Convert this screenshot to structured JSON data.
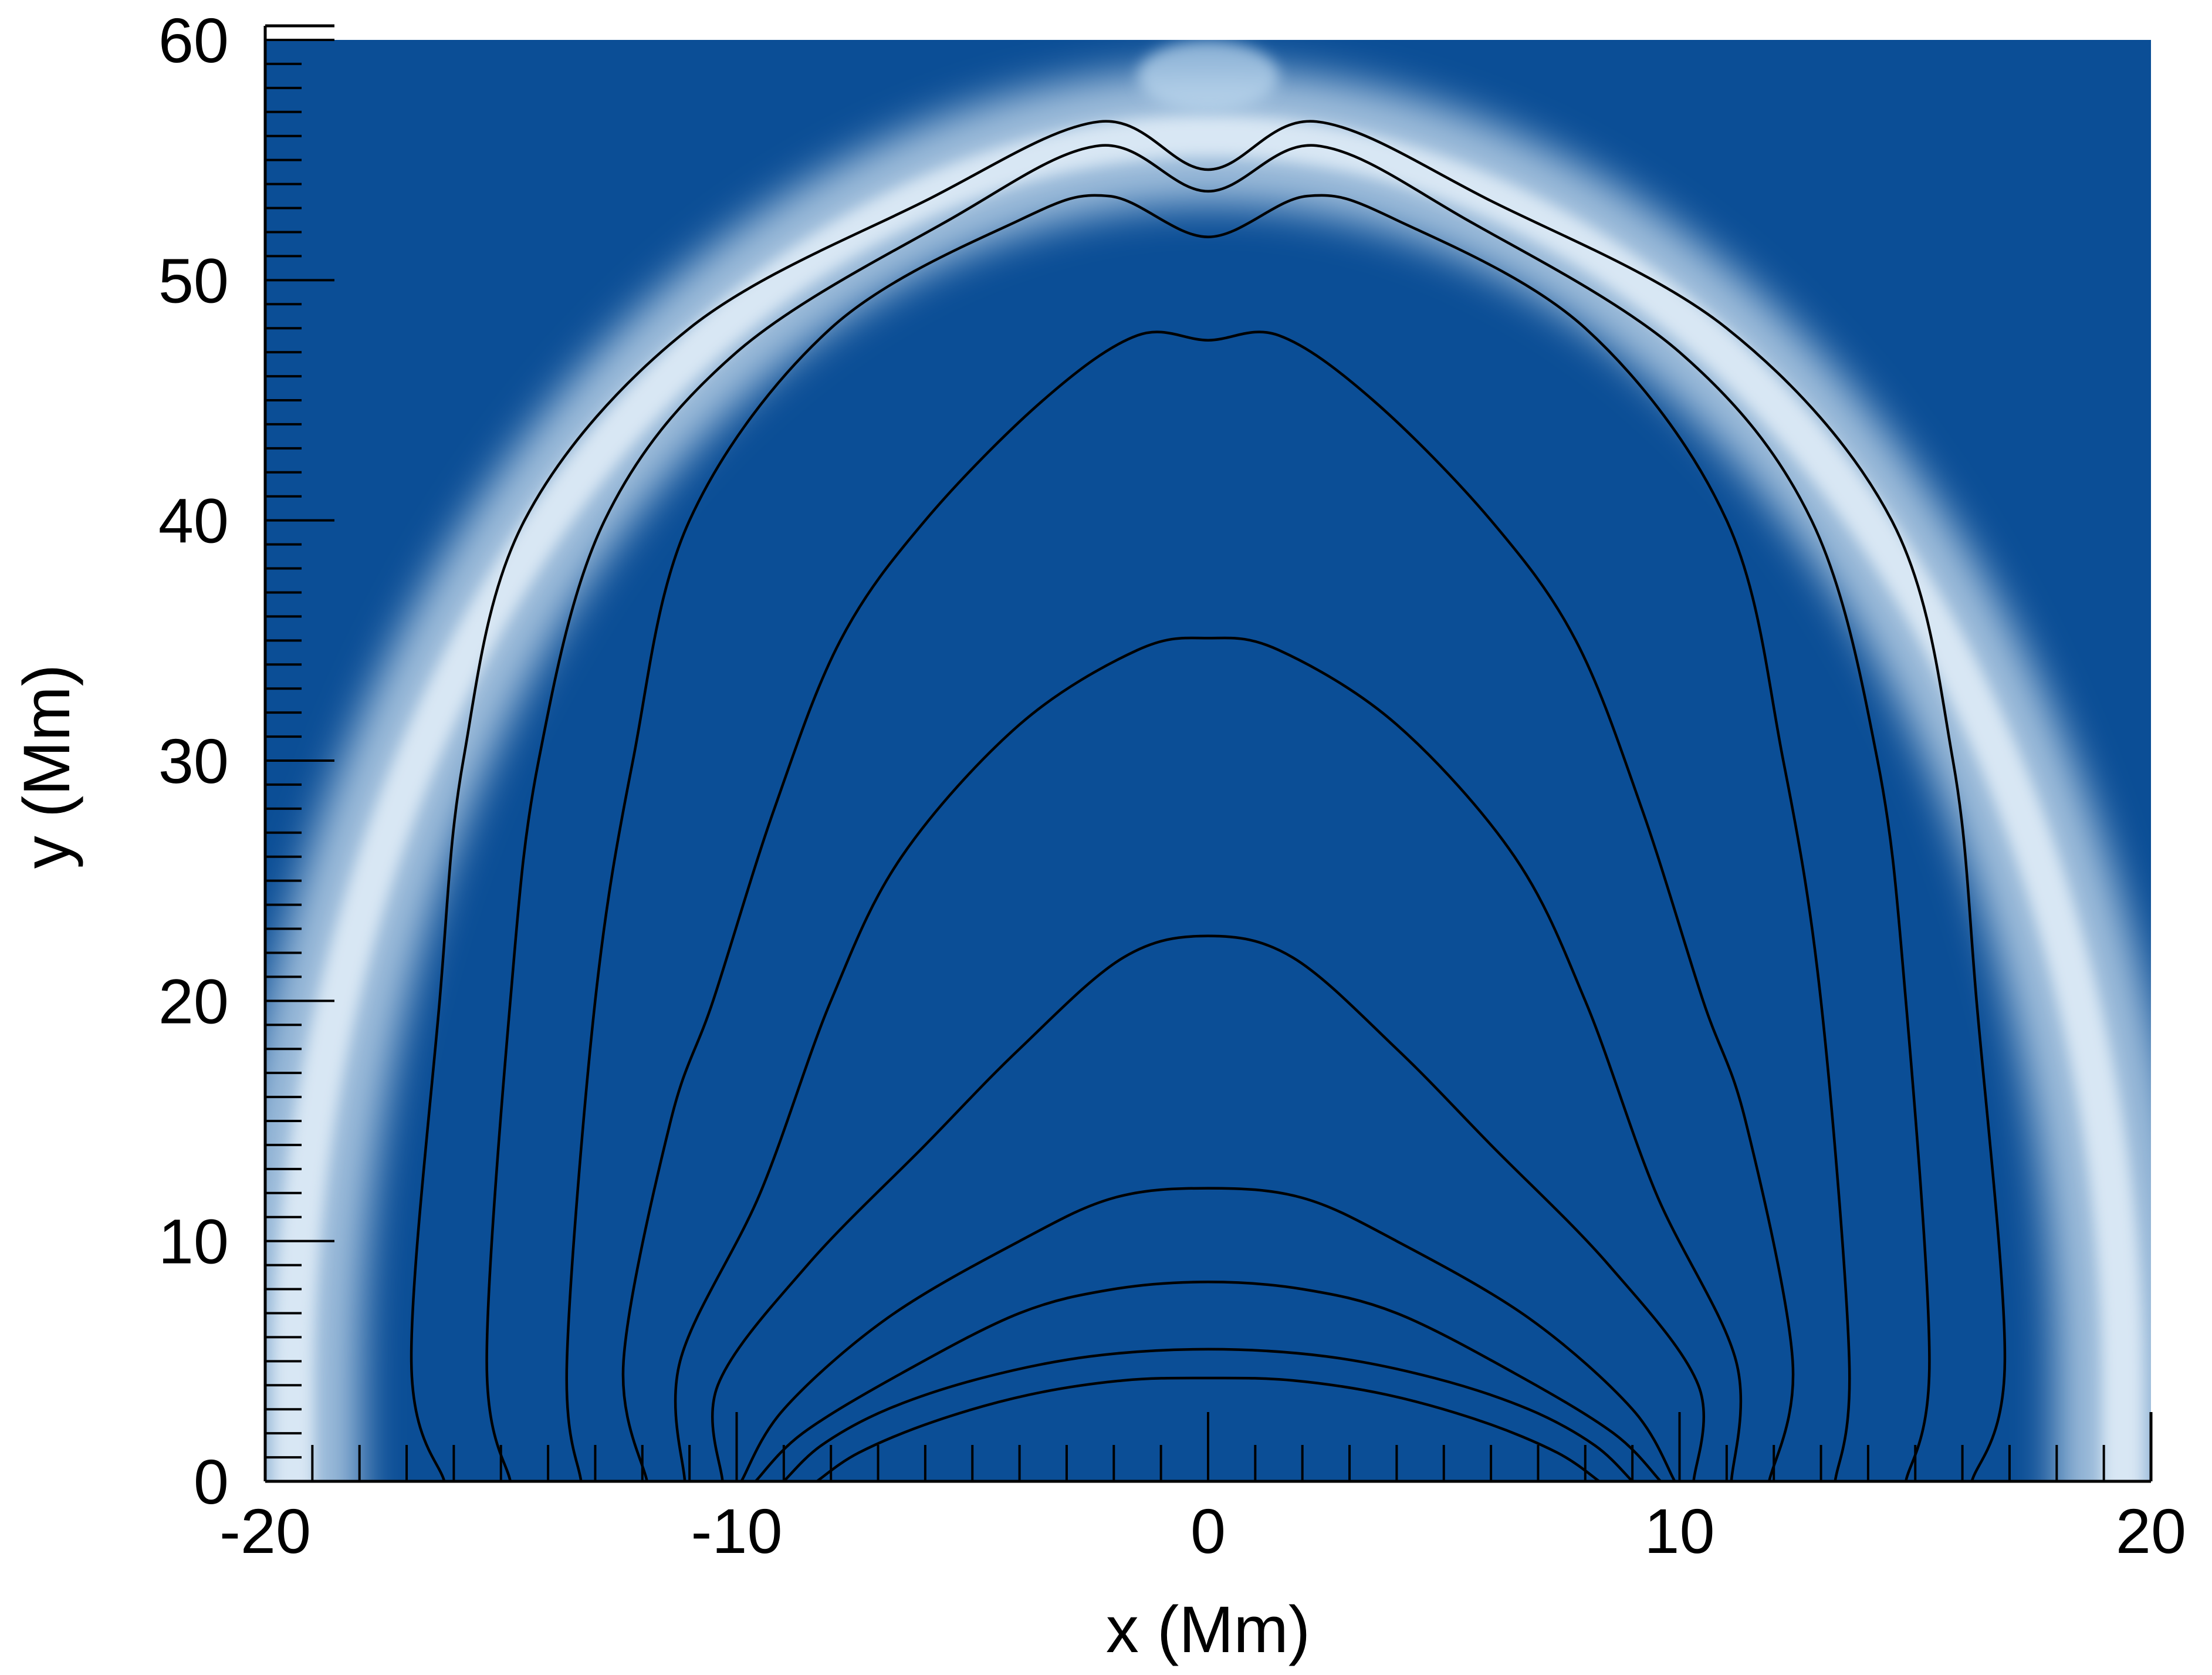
{
  "chart_data": {
    "type": "heatmap",
    "title": "",
    "xlabel": "x (Mm)",
    "ylabel": "y (Mm)",
    "xlim": [
      -20,
      20
    ],
    "ylim": [
      0,
      60
    ],
    "x_ticks": [
      -20,
      -10,
      0,
      10,
      20
    ],
    "y_ticks": [
      0,
      10,
      20,
      30,
      40,
      50,
      60
    ],
    "x_minor_step": 1,
    "y_minor_step": 1,
    "grid": false,
    "legend": "none",
    "colormap": {
      "background": "#0b4e96",
      "dark": "#084a91",
      "bright": "#cfe2f1"
    },
    "arch_band": {
      "semi_axis_x": 19.4,
      "semi_axis_y": 52,
      "base_y": 4
    },
    "field_lines": [
      {
        "points": [
          [
            -16.2,
            0
          ],
          [
            -16.9,
            5
          ],
          [
            -16.3,
            20
          ],
          [
            -15.8,
            30
          ],
          [
            -14.5,
            40
          ],
          [
            -11,
            48
          ],
          [
            -6,
            53.3
          ],
          [
            -2.3,
            56.6
          ],
          [
            0,
            54.6
          ],
          [
            2.3,
            56.6
          ],
          [
            6,
            53.3
          ],
          [
            11,
            48
          ],
          [
            14.5,
            40
          ],
          [
            15.8,
            30
          ],
          [
            16.3,
            20
          ],
          [
            16.9,
            5
          ],
          [
            16.2,
            0
          ]
        ]
      },
      {
        "points": [
          [
            -14.8,
            0
          ],
          [
            -15.3,
            5
          ],
          [
            -14.8,
            20
          ],
          [
            -14.2,
            30
          ],
          [
            -12.8,
            40
          ],
          [
            -10,
            47
          ],
          [
            -5.5,
            52.5
          ],
          [
            -2.3,
            55.6
          ],
          [
            0,
            53.7
          ],
          [
            2.3,
            55.6
          ],
          [
            5.5,
            52.5
          ],
          [
            10,
            47
          ],
          [
            12.8,
            40
          ],
          [
            14.2,
            30
          ],
          [
            14.8,
            20
          ],
          [
            15.3,
            5
          ],
          [
            14.8,
            0
          ]
        ]
      },
      {
        "points": [
          [
            -13.3,
            0
          ],
          [
            -13.6,
            5
          ],
          [
            -13,
            20
          ],
          [
            -12.2,
            30
          ],
          [
            -11,
            40
          ],
          [
            -8,
            48
          ],
          [
            -4,
            52.5
          ],
          [
            -2.1,
            53.5
          ],
          [
            0,
            51.8
          ],
          [
            2.1,
            53.5
          ],
          [
            4,
            52.5
          ],
          [
            8,
            48
          ],
          [
            11,
            40
          ],
          [
            12.2,
            30
          ],
          [
            13,
            20
          ],
          [
            13.6,
            5
          ],
          [
            13.3,
            0
          ]
        ]
      },
      {
        "points": [
          [
            -11.9,
            0
          ],
          [
            -12.4,
            5
          ],
          [
            -11.4,
            15
          ],
          [
            -10.5,
            20
          ],
          [
            -9.2,
            28
          ],
          [
            -7.8,
            35
          ],
          [
            -6,
            40
          ],
          [
            -3.5,
            45
          ],
          [
            -1.5,
            47.7
          ],
          [
            0,
            47.5
          ],
          [
            1.5,
            47.7
          ],
          [
            3.5,
            45
          ],
          [
            6,
            40
          ],
          [
            7.8,
            35
          ],
          [
            9.2,
            28
          ],
          [
            10.5,
            20
          ],
          [
            11.4,
            15
          ],
          [
            12.4,
            5
          ],
          [
            11.9,
            0
          ]
        ]
      },
      {
        "points": [
          [
            -11.1,
            0
          ],
          [
            -11.2,
            5
          ],
          [
            -9.5,
            12
          ],
          [
            -8,
            20
          ],
          [
            -6.5,
            26
          ],
          [
            -4,
            31.5
          ],
          [
            -1.5,
            34.6
          ],
          [
            0,
            35.1
          ],
          [
            1.5,
            34.6
          ],
          [
            4,
            31.5
          ],
          [
            6.5,
            26
          ],
          [
            8,
            20
          ],
          [
            9.5,
            12
          ],
          [
            11.2,
            5
          ],
          [
            11.1,
            0
          ]
        ]
      },
      {
        "points": [
          [
            -10.3,
            0
          ],
          [
            -10.4,
            4
          ],
          [
            -8.5,
            9
          ],
          [
            -6,
            14
          ],
          [
            -4,
            18
          ],
          [
            -1.8,
            21.8
          ],
          [
            0,
            22.7
          ],
          [
            1.8,
            21.8
          ],
          [
            4,
            18
          ],
          [
            6,
            14
          ],
          [
            8.5,
            9
          ],
          [
            10.4,
            4
          ],
          [
            10.3,
            0
          ]
        ]
      },
      {
        "points": [
          [
            -9.9,
            0
          ],
          [
            -9,
            3
          ],
          [
            -6.8,
            6.8
          ],
          [
            -4,
            10
          ],
          [
            -2,
            11.8
          ],
          [
            0,
            12.2
          ],
          [
            2,
            11.8
          ],
          [
            4,
            10
          ],
          [
            6.8,
            6.8
          ],
          [
            9,
            3
          ],
          [
            9.9,
            0
          ]
        ]
      },
      {
        "points": [
          [
            -9.6,
            0
          ],
          [
            -8.6,
            2
          ],
          [
            -6.5,
            4.5
          ],
          [
            -4,
            7
          ],
          [
            -2,
            8
          ],
          [
            0,
            8.3
          ],
          [
            2,
            8
          ],
          [
            4,
            7
          ],
          [
            6.5,
            4.5
          ],
          [
            8.6,
            2
          ],
          [
            9.6,
            0
          ]
        ]
      },
      {
        "points": [
          [
            -9.0,
            0
          ],
          [
            -8.2,
            1.5
          ],
          [
            -6.8,
            3
          ],
          [
            -4.8,
            4.3
          ],
          [
            -2.5,
            5.2
          ],
          [
            0,
            5.5
          ],
          [
            2.5,
            5.2
          ],
          [
            4.8,
            4.3
          ],
          [
            6.8,
            3
          ],
          [
            8.2,
            1.5
          ],
          [
            9.0,
            0
          ]
        ]
      },
      {
        "points": [
          [
            -8.3,
            0
          ],
          [
            -7.4,
            1.2
          ],
          [
            -5.8,
            2.5
          ],
          [
            -3.8,
            3.6
          ],
          [
            -1.8,
            4.2
          ],
          [
            0,
            4.3
          ],
          [
            1.8,
            4.2
          ],
          [
            3.8,
            3.6
          ],
          [
            5.8,
            2.5
          ],
          [
            7.4,
            1.2
          ],
          [
            8.3,
            0
          ]
        ]
      }
    ]
  }
}
